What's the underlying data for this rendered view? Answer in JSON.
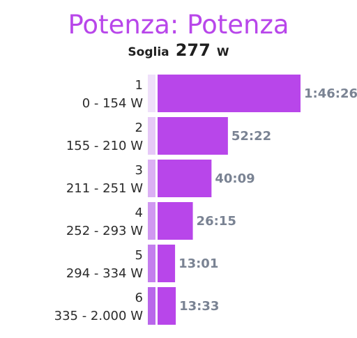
{
  "title": "Potenza: Potenza",
  "threshold": {
    "label": "Soglia",
    "value": "277",
    "unit": "W"
  },
  "colors": {
    "title": "#b846ea",
    "bar": "#b846ea",
    "label": "#7a8393",
    "zone_strips": [
      "#efe0fa",
      "#e6c9f7",
      "#dbb0f4",
      "#d098f1",
      "#c47eee",
      "#b966eb"
    ]
  },
  "chart_data": {
    "type": "bar",
    "orientation": "horizontal",
    "categories": [
      "1",
      "2",
      "3",
      "4",
      "5",
      "6"
    ],
    "ranges": [
      "0 - 154 W",
      "155 - 210 W",
      "211 - 251 W",
      "252 - 293 W",
      "294 - 334 W",
      "335 - 2.000 W"
    ],
    "values_seconds": [
      6386,
      3142,
      2409,
      1575,
      781,
      813
    ],
    "labels": [
      "1:46:26",
      "52:22",
      "40:09",
      "26:15",
      "13:01",
      "13:33"
    ]
  }
}
